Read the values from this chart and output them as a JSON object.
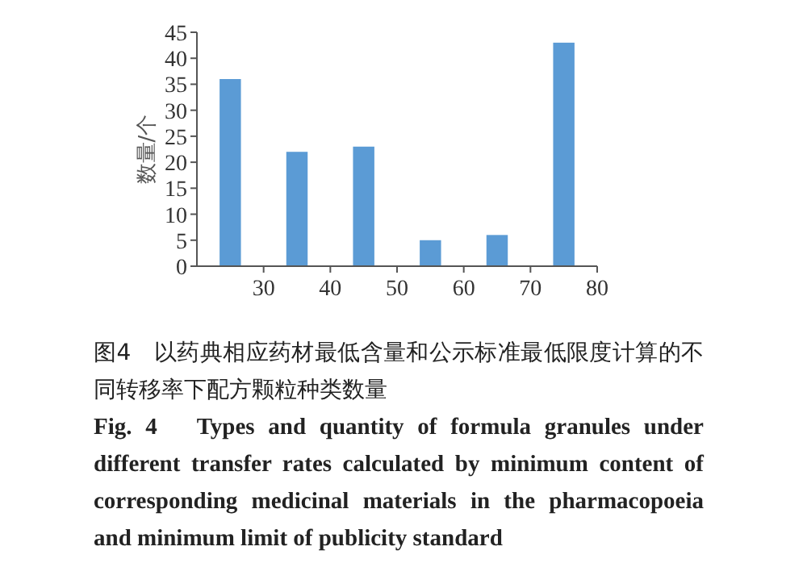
{
  "chart_data": {
    "type": "bar",
    "x": [
      25,
      35,
      45,
      55,
      65,
      75
    ],
    "values": [
      36,
      22,
      23,
      5,
      6,
      43
    ],
    "color": "#5b9bd5",
    "xlim": [
      20,
      80
    ],
    "xticks": [
      30,
      40,
      50,
      60,
      70,
      80
    ],
    "ylim": [
      0,
      45
    ],
    "yticks": [
      0,
      5,
      10,
      15,
      20,
      25,
      30,
      35,
      40,
      45
    ],
    "ylabel": "数量/个",
    "grid": false,
    "annotations": [
      "图4　以药典相应药材最低含量和公示标准最低限度计算的不同转移率下配方颗粒种类数量",
      "Fig. 4　Types and quantity of formula granules under different transfer rates calculated by minimum content of corresponding medicinal materials in the pharmacopoeia and minimum limit of publicity standard"
    ]
  }
}
